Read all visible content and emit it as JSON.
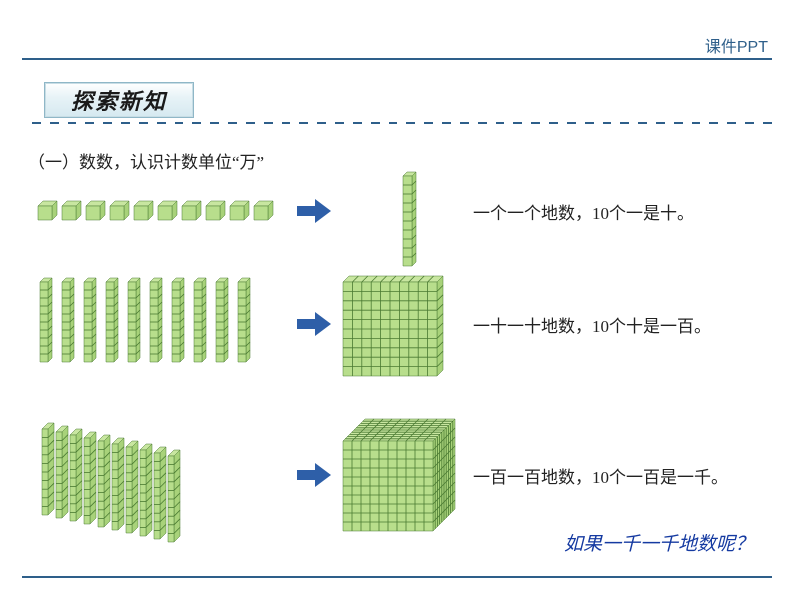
{
  "header": {
    "label": "课件PPT"
  },
  "section": {
    "banner": "探索新知"
  },
  "subtitle": "（一）数数，认识计数单位“万”",
  "rows": [
    {
      "text": "一个一个地数，10个一是十。"
    },
    {
      "text": "一十一十地数，10个十是一百。"
    },
    {
      "text": "一百一百地数，10个一百是一千。"
    }
  ],
  "question": "如果一千一千地数呢？",
  "vis": {
    "cube_top_color": "#c8e6a0",
    "cube_side_color": "#a8d27a",
    "cube_front_color": "#b8de8c",
    "cube_stroke": "#4a7a32",
    "arrow_color": "#2e5fa8",
    "rule_color": "#2e5f8a",
    "count_per_row": 10,
    "grid_lines": 10
  }
}
